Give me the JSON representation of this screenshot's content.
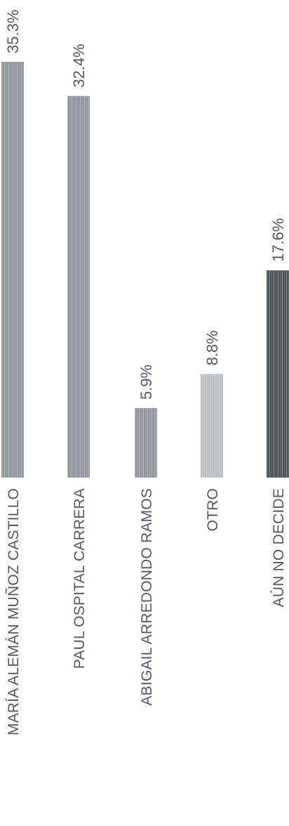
{
  "chart_data": {
    "type": "bar",
    "orientation": "vertical (page rotated 90° counter-clockwise)",
    "categories": [
      "MARÍA ALEMÁN MUÑOZ CASTILLO",
      "PAUL OSPITAL CARRERA",
      "ABIGAIL ARREDONDO RAMOS",
      "OTRO",
      "AÚN NO DECIDE"
    ],
    "values": [
      35.3,
      32.4,
      5.9,
      8.8,
      17.6
    ],
    "value_labels": [
      "35.3%",
      "32.4%",
      "5.9%",
      "8.8%",
      "17.6%"
    ],
    "ylim": [
      0,
      35.3
    ],
    "grid": false,
    "legend": "none",
    "colors": {
      "bars": [
        "#8e959b",
        "#8e959b",
        "#8e959b",
        "#b9bec2",
        "#4c5156"
      ],
      "text": "#555a60",
      "background": "#ffffff"
    }
  }
}
